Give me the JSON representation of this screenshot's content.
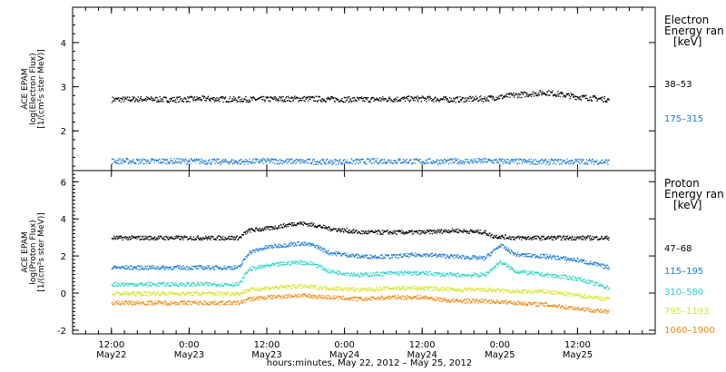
{
  "chart_data": [
    {
      "type": "scatter",
      "panel": "electron",
      "ylabel": [
        "ACE EPAM",
        "log(Electron Flux)",
        "[1/(cm²s ster MeV)]"
      ],
      "ylim": [
        1.1,
        4.8
      ],
      "yticks": [
        2,
        3,
        4
      ],
      "legend_title": [
        "Electron",
        "Energy ran",
        "[keV]"
      ],
      "legend_placement": "right",
      "series": [
        {
          "name": "38–53",
          "color": "#000000",
          "values": [
            [
              0.0,
              2.72
            ],
            [
              0.2,
              2.73
            ],
            [
              0.4,
              2.72
            ],
            [
              0.6,
              2.74
            ],
            [
              0.8,
              2.72
            ],
            [
              1.0,
              2.73
            ],
            [
              1.2,
              2.74
            ],
            [
              1.4,
              2.73
            ],
            [
              1.6,
              2.72
            ],
            [
              1.8,
              2.73
            ],
            [
              2.0,
              2.74
            ],
            [
              2.2,
              2.72
            ],
            [
              2.4,
              2.74
            ],
            [
              2.6,
              2.82
            ],
            [
              2.8,
              2.88
            ],
            [
              3.0,
              2.78
            ],
            [
              3.2,
              2.72
            ]
          ]
        },
        {
          "name": "175–315",
          "color": "#1a7ad4",
          "values": [
            [
              0.0,
              1.33
            ],
            [
              0.2,
              1.32
            ],
            [
              0.4,
              1.33
            ],
            [
              0.6,
              1.32
            ],
            [
              0.8,
              1.31
            ],
            [
              1.0,
              1.33
            ],
            [
              1.2,
              1.32
            ],
            [
              1.4,
              1.31
            ],
            [
              1.6,
              1.32
            ],
            [
              1.8,
              1.33
            ],
            [
              2.0,
              1.32
            ],
            [
              2.2,
              1.32
            ],
            [
              2.4,
              1.33
            ],
            [
              2.6,
              1.32
            ],
            [
              2.8,
              1.31
            ],
            [
              3.0,
              1.32
            ],
            [
              3.2,
              1.31
            ]
          ]
        }
      ]
    },
    {
      "type": "scatter",
      "panel": "proton",
      "ylabel": [
        "ACE EPAM",
        "log(Proton Flux)",
        "[1/(cm²s ster MeV)]"
      ],
      "ylim": [
        -2.2,
        6.6
      ],
      "yticks": [
        -2,
        0,
        2,
        4,
        6
      ],
      "legend_title": [
        "Proton",
        "Energy ran",
        "[keV]"
      ],
      "legend_placement": "right",
      "series": [
        {
          "name": "47–68",
          "color": "#000000",
          "values": [
            [
              0.0,
              3.0
            ],
            [
              0.3,
              3.0
            ],
            [
              0.6,
              3.0
            ],
            [
              0.82,
              3.0
            ],
            [
              0.88,
              3.4
            ],
            [
              1.0,
              3.5
            ],
            [
              1.2,
              3.8
            ],
            [
              1.3,
              3.7
            ],
            [
              1.4,
              3.5
            ],
            [
              1.6,
              3.3
            ],
            [
              1.8,
              3.3
            ],
            [
              2.0,
              3.3
            ],
            [
              2.2,
              3.4
            ],
            [
              2.4,
              3.3
            ],
            [
              2.45,
              3.1
            ],
            [
              2.6,
              3.0
            ],
            [
              2.8,
              3.0
            ],
            [
              3.0,
              3.0
            ],
            [
              3.2,
              3.0
            ]
          ]
        },
        {
          "name": "115–195",
          "color": "#1a7ad4",
          "values": [
            [
              0.0,
              1.4
            ],
            [
              0.3,
              1.4
            ],
            [
              0.6,
              1.4
            ],
            [
              0.82,
              1.4
            ],
            [
              0.88,
              2.2
            ],
            [
              1.0,
              2.5
            ],
            [
              1.2,
              2.7
            ],
            [
              1.3,
              2.6
            ],
            [
              1.4,
              2.2
            ],
            [
              1.6,
              2.0
            ],
            [
              1.8,
              2.0
            ],
            [
              2.0,
              2.1
            ],
            [
              2.2,
              2.0
            ],
            [
              2.4,
              1.9
            ],
            [
              2.5,
              2.6
            ],
            [
              2.6,
              2.1
            ],
            [
              2.8,
              2.0
            ],
            [
              3.0,
              1.8
            ],
            [
              3.2,
              1.4
            ]
          ]
        },
        {
          "name": "310–580",
          "color": "#2ad3c8",
          "values": [
            [
              0.0,
              0.5
            ],
            [
              0.3,
              0.5
            ],
            [
              0.6,
              0.5
            ],
            [
              0.82,
              0.5
            ],
            [
              0.88,
              1.3
            ],
            [
              1.0,
              1.5
            ],
            [
              1.2,
              1.7
            ],
            [
              1.3,
              1.6
            ],
            [
              1.4,
              1.2
            ],
            [
              1.6,
              1.0
            ],
            [
              1.8,
              1.1
            ],
            [
              2.0,
              1.1
            ],
            [
              2.2,
              1.0
            ],
            [
              2.4,
              1.0
            ],
            [
              2.5,
              1.7
            ],
            [
              2.6,
              1.2
            ],
            [
              2.8,
              1.0
            ],
            [
              3.0,
              0.8
            ],
            [
              3.2,
              0.3
            ]
          ]
        },
        {
          "name": "795–1193",
          "color": "#d4e62a",
          "values": [
            [
              0.0,
              0.0
            ],
            [
              0.3,
              0.0
            ],
            [
              0.6,
              0.0
            ],
            [
              0.82,
              0.0
            ],
            [
              0.88,
              0.2
            ],
            [
              1.0,
              0.3
            ],
            [
              1.2,
              0.4
            ],
            [
              1.4,
              0.3
            ],
            [
              1.6,
              0.2
            ],
            [
              1.8,
              0.3
            ],
            [
              2.0,
              0.3
            ],
            [
              2.2,
              0.2
            ],
            [
              2.4,
              0.2
            ],
            [
              2.6,
              0.1
            ],
            [
              2.8,
              0.1
            ],
            [
              3.0,
              -0.1
            ],
            [
              3.2,
              -0.3
            ]
          ]
        },
        {
          "name": "1060–1900",
          "color": "#f08a14",
          "values": [
            [
              0.0,
              -0.5
            ],
            [
              0.3,
              -0.5
            ],
            [
              0.6,
              -0.5
            ],
            [
              0.82,
              -0.5
            ],
            [
              0.88,
              -0.3
            ],
            [
              1.0,
              -0.2
            ],
            [
              1.2,
              -0.1
            ],
            [
              1.4,
              -0.2
            ],
            [
              1.6,
              -0.3
            ],
            [
              1.8,
              -0.2
            ],
            [
              2.0,
              -0.2
            ],
            [
              2.2,
              -0.4
            ],
            [
              2.4,
              -0.4
            ],
            [
              2.6,
              -0.5
            ],
            [
              2.8,
              -0.6
            ],
            [
              3.0,
              -0.8
            ],
            [
              3.2,
              -1.0
            ]
          ]
        }
      ]
    }
  ],
  "x_axis": {
    "xlim": [
      -0.25,
      3.5
    ],
    "xlabel": "hours:minutes, May 22, 2012 – May 25, 2012",
    "ticks": [
      {
        "x": 0.0,
        "time": "12:00",
        "date": "May22"
      },
      {
        "x": 0.5,
        "time": "0:00",
        "date": "May23"
      },
      {
        "x": 1.0,
        "time": "12:00",
        "date": "May23"
      },
      {
        "x": 1.5,
        "time": "0:00",
        "date": "May24"
      },
      {
        "x": 2.0,
        "time": "12:00",
        "date": "May24"
      },
      {
        "x": 2.5,
        "time": "0:00",
        "date": "May25"
      },
      {
        "x": 3.0,
        "time": "12:00",
        "date": "May25"
      }
    ]
  },
  "colors": {
    "axis": "#000000",
    "background": "#ffffff"
  }
}
